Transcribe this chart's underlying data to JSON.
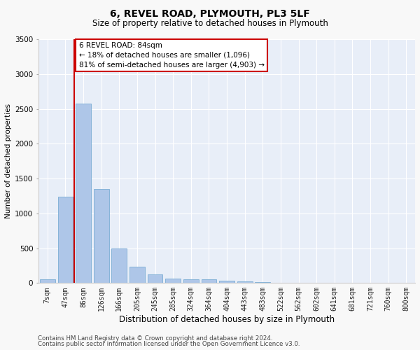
{
  "title": "6, REVEL ROAD, PLYMOUTH, PL3 5LF",
  "subtitle": "Size of property relative to detached houses in Plymouth",
  "xlabel": "Distribution of detached houses by size in Plymouth",
  "ylabel": "Number of detached properties",
  "categories": [
    "7sqm",
    "47sqm",
    "86sqm",
    "126sqm",
    "166sqm",
    "205sqm",
    "245sqm",
    "285sqm",
    "324sqm",
    "364sqm",
    "404sqm",
    "443sqm",
    "483sqm",
    "522sqm",
    "562sqm",
    "602sqm",
    "641sqm",
    "681sqm",
    "721sqm",
    "760sqm",
    "800sqm"
  ],
  "values": [
    50,
    1240,
    2580,
    1350,
    500,
    230,
    120,
    60,
    55,
    50,
    30,
    25,
    10,
    5,
    3,
    2,
    1,
    1,
    0,
    0,
    0
  ],
  "bar_color": "#aec6e8",
  "bar_edge_color": "#7aadd4",
  "vline_color": "#cc0000",
  "vline_x_index": 2,
  "annotation_text": "6 REVEL ROAD: 84sqm\n← 18% of detached houses are smaller (1,096)\n81% of semi-detached houses are larger (4,903) →",
  "annotation_box_facecolor": "#ffffff",
  "annotation_box_edgecolor": "#cc0000",
  "ylim": [
    0,
    3500
  ],
  "yticks": [
    0,
    500,
    1000,
    1500,
    2000,
    2500,
    3000,
    3500
  ],
  "background_color": "#e8eef8",
  "grid_color": "#ffffff",
  "title_fontsize": 10,
  "subtitle_fontsize": 8.5,
  "xlabel_fontsize": 8.5,
  "ylabel_fontsize": 7.5,
  "tick_fontsize": 7,
  "footer_line1": "Contains HM Land Registry data © Crown copyright and database right 2024.",
  "footer_line2": "Contains public sector information licensed under the Open Government Licence v3.0."
}
